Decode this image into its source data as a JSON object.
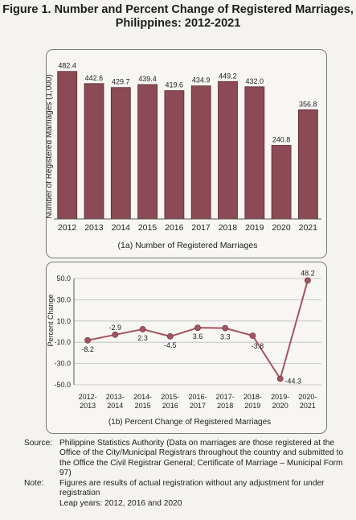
{
  "figure": {
    "title_line1": "Figure 1. Number and Percent Change of Registered Marriages,",
    "title_line2": "Philippines: 2012-2021"
  },
  "chart_data": [
    {
      "type": "bar",
      "title": "(1a) Number of Registered Marriages",
      "ylabel": "Number of Registered Marriages (1,000)",
      "xlabel": "",
      "categories": [
        "2012",
        "2013",
        "2014",
        "2015",
        "2016",
        "2017",
        "2018",
        "2019",
        "2020",
        "2021"
      ],
      "values": [
        482.4,
        442.6,
        429.7,
        439.4,
        419.6,
        434.9,
        449.2,
        432.0,
        240.8,
        356.8
      ],
      "value_labels": [
        "482.4",
        "442.6",
        "429.7",
        "439.4",
        "419.6",
        "434.9",
        "449.2",
        "432.0",
        "240.8",
        "356.8"
      ],
      "ylim": [
        0,
        500
      ],
      "grid": false,
      "colors": {
        "bar": "#8b4a55",
        "bar_edge": "#5e2a33"
      }
    },
    {
      "type": "line",
      "title": "(1b) Percent Change of Registered Marriages",
      "ylabel": "Percent Change",
      "xlabel": "",
      "categories": [
        [
          "2012-",
          "2013"
        ],
        [
          "2013-",
          "2014"
        ],
        [
          "2014-",
          "2015"
        ],
        [
          "2015-",
          "2016"
        ],
        [
          "2016-",
          "2017"
        ],
        [
          "2017-",
          "2018"
        ],
        [
          "2018-",
          "2019"
        ],
        [
          "2019-",
          "2020"
        ],
        [
          "2020-",
          "2021"
        ]
      ],
      "values": [
        -8.2,
        -2.9,
        2.3,
        -4.5,
        3.6,
        3.3,
        -3.8,
        -44.3,
        48.2
      ],
      "value_labels": [
        "-8.2",
        "-2.9",
        "2.3",
        "-4.5",
        "3.6",
        "3.3",
        "-3.8",
        "-44.3",
        "48.2"
      ],
      "yticks": [
        "50.0",
        "30.0",
        "10.0",
        "-10.0",
        "-30.0",
        "-50.0"
      ],
      "ytick_values": [
        50,
        30,
        10,
        -10,
        -30,
        -50
      ],
      "ylim": [
        -50,
        50
      ],
      "grid": true,
      "colors": {
        "line": "#a3545f",
        "marker": "#a3545f",
        "grid": "#bdbdbd"
      }
    }
  ],
  "notes": {
    "source_label": "Source:",
    "source_text": "Philippine Statistics Authority (Data on marriages are those registered at the Office of the City/Municipal Registrars throughout the country and submitted to the Office the Civil Registrar General; Certificate of Marriage – Municipal Form 97)",
    "note_label": "Note:",
    "note_text": "Figures are results of actual registration without any adjustment for under registration",
    "leap_text": "Leap years: 2012, 2016 and 2020"
  }
}
